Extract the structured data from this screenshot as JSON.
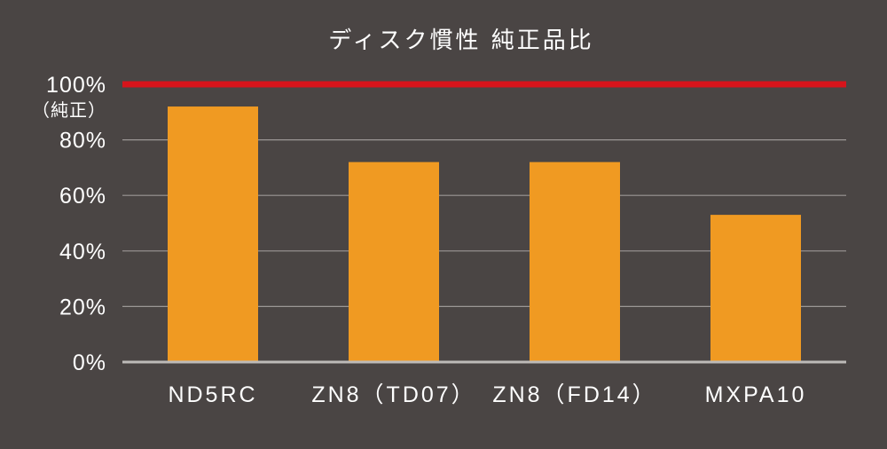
{
  "chart_data": {
    "type": "bar",
    "title": "ディスク慣性 純正品比",
    "categories": [
      "ND5RC",
      "ZN8（TD07）",
      "ZN8（FD14）",
      "MXPA10"
    ],
    "values": [
      92,
      72,
      72,
      53
    ],
    "ylim": [
      0,
      100
    ],
    "yticks": [
      {
        "value": 0,
        "label": "0%"
      },
      {
        "value": 20,
        "label": "20%"
      },
      {
        "value": 40,
        "label": "40%"
      },
      {
        "value": 60,
        "label": "60%"
      },
      {
        "value": 80,
        "label": "80%"
      },
      {
        "value": 100,
        "label": "100%",
        "sublabel": "（純正）"
      }
    ],
    "reference_line": {
      "value": 100
    },
    "grid": true,
    "colors": {
      "background": "#4a4544",
      "bar": "#f09a22",
      "reference_line": "#d7141b",
      "grid": "#9b9795",
      "axis": "#bdbab8",
      "text": "#ffffff"
    }
  }
}
